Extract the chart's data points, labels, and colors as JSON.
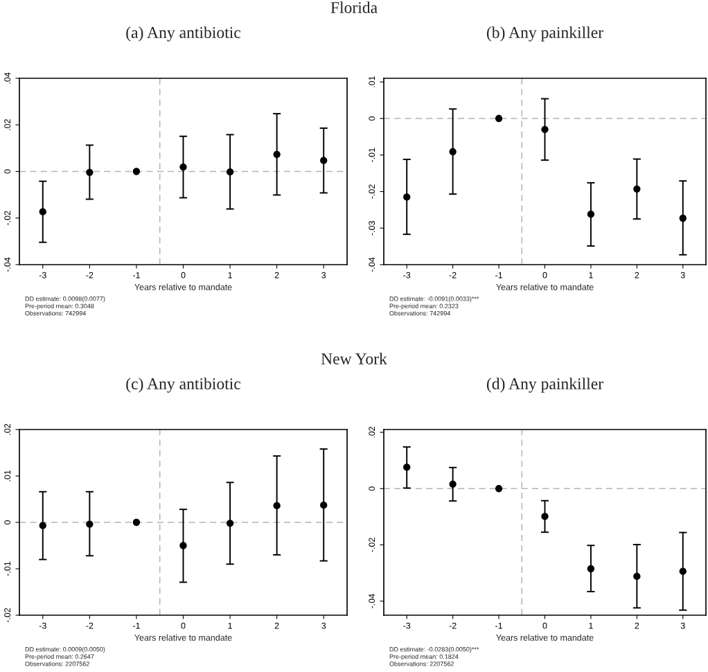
{
  "chart_data": [
    {
      "type": "scatter",
      "subtitle": "Florida",
      "title": "(a) Any antibiotic",
      "xlabel": "Years relative to mandate",
      "x": [
        -3,
        -2,
        -1,
        0,
        1,
        2,
        3
      ],
      "xlim": [
        -3.5,
        3.5
      ],
      "xticks": [
        -3,
        -2,
        -1,
        0,
        1,
        2,
        3
      ],
      "ylim": [
        -0.04,
        0.04
      ],
      "yticks": [
        {
          "value": -0.04,
          "label": "-.04"
        },
        {
          "value": -0.02,
          "label": "-.02"
        },
        {
          "value": 0,
          "label": "0"
        },
        {
          "value": 0.02,
          "label": ".02"
        },
        {
          "value": 0.04,
          "label": ".04"
        }
      ],
      "marker": "circle",
      "grid": false,
      "series": [
        {
          "color": "#000000",
          "values": [
            -0.0173,
            -0.0004,
            0,
            0.0019,
            -0.0002,
            0.0073,
            0.0047
          ],
          "errors": [
            [
              -0.0304,
              -0.0042
            ],
            [
              -0.0119,
              0.0113
            ],
            null,
            [
              -0.0113,
              0.0151
            ],
            [
              -0.0161,
              0.0158
            ],
            [
              -0.0101,
              0.0248
            ],
            [
              -0.0092,
              0.0186
            ]
          ]
        }
      ],
      "ref_lines": [
        {
          "axis": "x",
          "value": -0.5,
          "color": "#b4b4b4",
          "line_style": "dashed"
        },
        {
          "axis": "y",
          "value": 0,
          "color": "#b4b4b4",
          "line_style": "dashed"
        }
      ],
      "annotations": [
        "DD estimate: 0.0098(0.0077)",
        "Pre-period mean: 0.3048",
        "Observations: 742994"
      ]
    },
    {
      "type": "scatter",
      "title": "(b) Any painkiller",
      "xlabel": "Years relative to mandate",
      "x": [
        -3,
        -2,
        -1,
        0,
        1,
        2,
        3
      ],
      "xlim": [
        -3.5,
        3.5
      ],
      "xticks": [
        -3,
        -2,
        -1,
        0,
        1,
        2,
        3
      ],
      "ylim": [
        -0.04,
        0.011
      ],
      "yticks": [
        {
          "value": -0.04,
          "label": "-.04"
        },
        {
          "value": -0.03,
          "label": "-.03"
        },
        {
          "value": -0.02,
          "label": "-.02"
        },
        {
          "value": -0.01,
          "label": "-.01"
        },
        {
          "value": 0,
          "label": "0"
        },
        {
          "value": 0.01,
          "label": ".01"
        }
      ],
      "marker": "circle",
      "grid": false,
      "series": [
        {
          "color": "#000000",
          "values": [
            -0.0215,
            -0.0091,
            0,
            -0.003,
            -0.0262,
            -0.0193,
            -0.0273
          ],
          "errors": [
            [
              -0.0317,
              -0.0112
            ],
            [
              -0.0207,
              0.0026
            ],
            null,
            [
              -0.0114,
              0.0054
            ],
            [
              -0.0349,
              -0.0176
            ],
            [
              -0.0275,
              -0.0111
            ],
            [
              -0.0373,
              -0.0171
            ]
          ]
        }
      ],
      "ref_lines": [
        {
          "axis": "x",
          "value": -0.5,
          "color": "#b4b4b4",
          "line_style": "dashed"
        },
        {
          "axis": "y",
          "value": 0,
          "color": "#b4b4b4",
          "line_style": "dashed"
        }
      ],
      "annotations": [
        "DD estimate: -0.0091(0.0033)***",
        "Pre-period mean: 0.2323",
        "Observations: 742994"
      ]
    },
    {
      "type": "scatter",
      "subtitle": "New York",
      "title": "(c) Any antibiotic",
      "xlabel": "Years relative to mandate",
      "x": [
        -3,
        -2,
        -1,
        0,
        1,
        2,
        3
      ],
      "xlim": [
        -3.5,
        3.5
      ],
      "xticks": [
        -3,
        -2,
        -1,
        0,
        1,
        2,
        3
      ],
      "ylim": [
        -0.02,
        0.02
      ],
      "yticks": [
        {
          "value": -0.02,
          "label": "-.02"
        },
        {
          "value": -0.01,
          "label": "-.01"
        },
        {
          "value": 0,
          "label": "0"
        },
        {
          "value": 0.01,
          "label": ".01"
        },
        {
          "value": 0.02,
          "label": ".02"
        }
      ],
      "marker": "circle",
      "grid": false,
      "series": [
        {
          "color": "#000000",
          "values": [
            -0.0007,
            -0.0004,
            0,
            -0.005,
            -0.0002,
            0.0036,
            0.0037
          ],
          "errors": [
            [
              -0.008,
              0.0066
            ],
            [
              -0.0072,
              0.0066
            ],
            null,
            [
              -0.0129,
              0.0028
            ],
            [
              -0.009,
              0.0086
            ],
            [
              -0.007,
              0.0143
            ],
            [
              -0.0083,
              0.0158
            ]
          ]
        }
      ],
      "ref_lines": [
        {
          "axis": "x",
          "value": -0.5,
          "color": "#b4b4b4",
          "line_style": "dashed"
        },
        {
          "axis": "y",
          "value": 0,
          "color": "#b4b4b4",
          "line_style": "dashed"
        }
      ],
      "annotations": [
        "DD estimate: 0.0009(0.0050)",
        "Pre-period mean: 0.2647",
        "Observations: 2207562"
      ]
    },
    {
      "type": "scatter",
      "title": "(d) Any painkiller",
      "xlabel": "Years relative to mandate",
      "x": [
        -3,
        -2,
        -1,
        0,
        1,
        2,
        3
      ],
      "xlim": [
        -3.5,
        3.5
      ],
      "xticks": [
        -3,
        -2,
        -1,
        0,
        1,
        2,
        3
      ],
      "ylim": [
        -0.045,
        0.021
      ],
      "yticks": [
        {
          "value": -0.04,
          "label": "-.04"
        },
        {
          "value": -0.02,
          "label": "-.02"
        },
        {
          "value": 0,
          "label": "0"
        },
        {
          "value": 0.02,
          "label": ".02"
        }
      ],
      "marker": "circle",
      "grid": false,
      "series": [
        {
          "color": "#000000",
          "values": [
            0.0076,
            0.0016,
            0,
            -0.0099,
            -0.0285,
            -0.0312,
            -0.0294
          ],
          "errors": [
            [
              0.0002,
              0.0148
            ],
            [
              -0.0044,
              0.0075
            ],
            null,
            [
              -0.0155,
              -0.0043
            ],
            [
              -0.0366,
              -0.0202
            ],
            [
              -0.0424,
              -0.0199
            ],
            [
              -0.0432,
              -0.0156
            ]
          ]
        }
      ],
      "ref_lines": [
        {
          "axis": "x",
          "value": -0.5,
          "color": "#b4b4b4",
          "line_style": "dashed"
        },
        {
          "axis": "y",
          "value": 0,
          "color": "#b4b4b4",
          "line_style": "dashed"
        }
      ],
      "annotations": [
        "DD estimate: -0.0283(0.0050)***",
        "Pre-period mean: 0.1824",
        "Observations: 2207562"
      ]
    }
  ]
}
